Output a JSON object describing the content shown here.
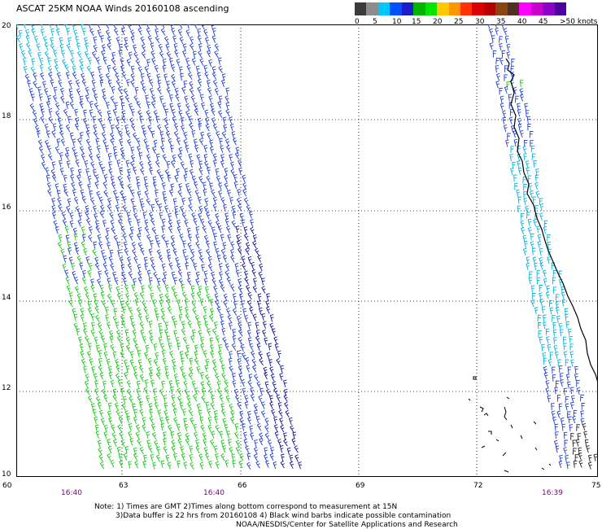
{
  "title": "ASCAT 25KM NOAA Winds 20160108 ascending",
  "legend": {
    "labels": [
      "0",
      "5",
      "10",
      "15",
      "20",
      "25",
      "30",
      "35",
      "40",
      "45",
      ">50 knots"
    ],
    "colors": [
      "#3a3a3a",
      "#8c8c8c",
      "#00c8ff",
      "#0050ff",
      "#1c1cc8",
      "#00b400",
      "#00e600",
      "#ffc800",
      "#ff9600",
      "#ff3200",
      "#dc0000",
      "#b40000",
      "#8b4513",
      "#503020",
      "#ff00ff",
      "#c800c8",
      "#8c00c8",
      "#50009c"
    ]
  },
  "map": {
    "lat_labels": [
      "20",
      "18",
      "16",
      "14",
      "12",
      "10"
    ],
    "lon_labels": [
      "60",
      "63",
      "66",
      "69",
      "72",
      "75"
    ],
    "time_labels": [
      "16:40",
      "16:40",
      "16:39"
    ]
  },
  "notes": {
    "line1": "Note: 1) Times are GMT 2)Times along bottom correspond to measurement at 15N",
    "line2": "3)Data buffer is 22 hrs from 20160108 4) Black wind barbs indicate possible contamination",
    "line3": "NOAA/NESDIS/Center for Satellite Applications and Research"
  },
  "colors": {
    "barb_cyan": "#00b4dc",
    "barb_blue": "#1e3cd2",
    "barb_navy": "#10109a",
    "barb_green": "#10c810",
    "coast": "#000000",
    "grid": "#000000"
  }
}
